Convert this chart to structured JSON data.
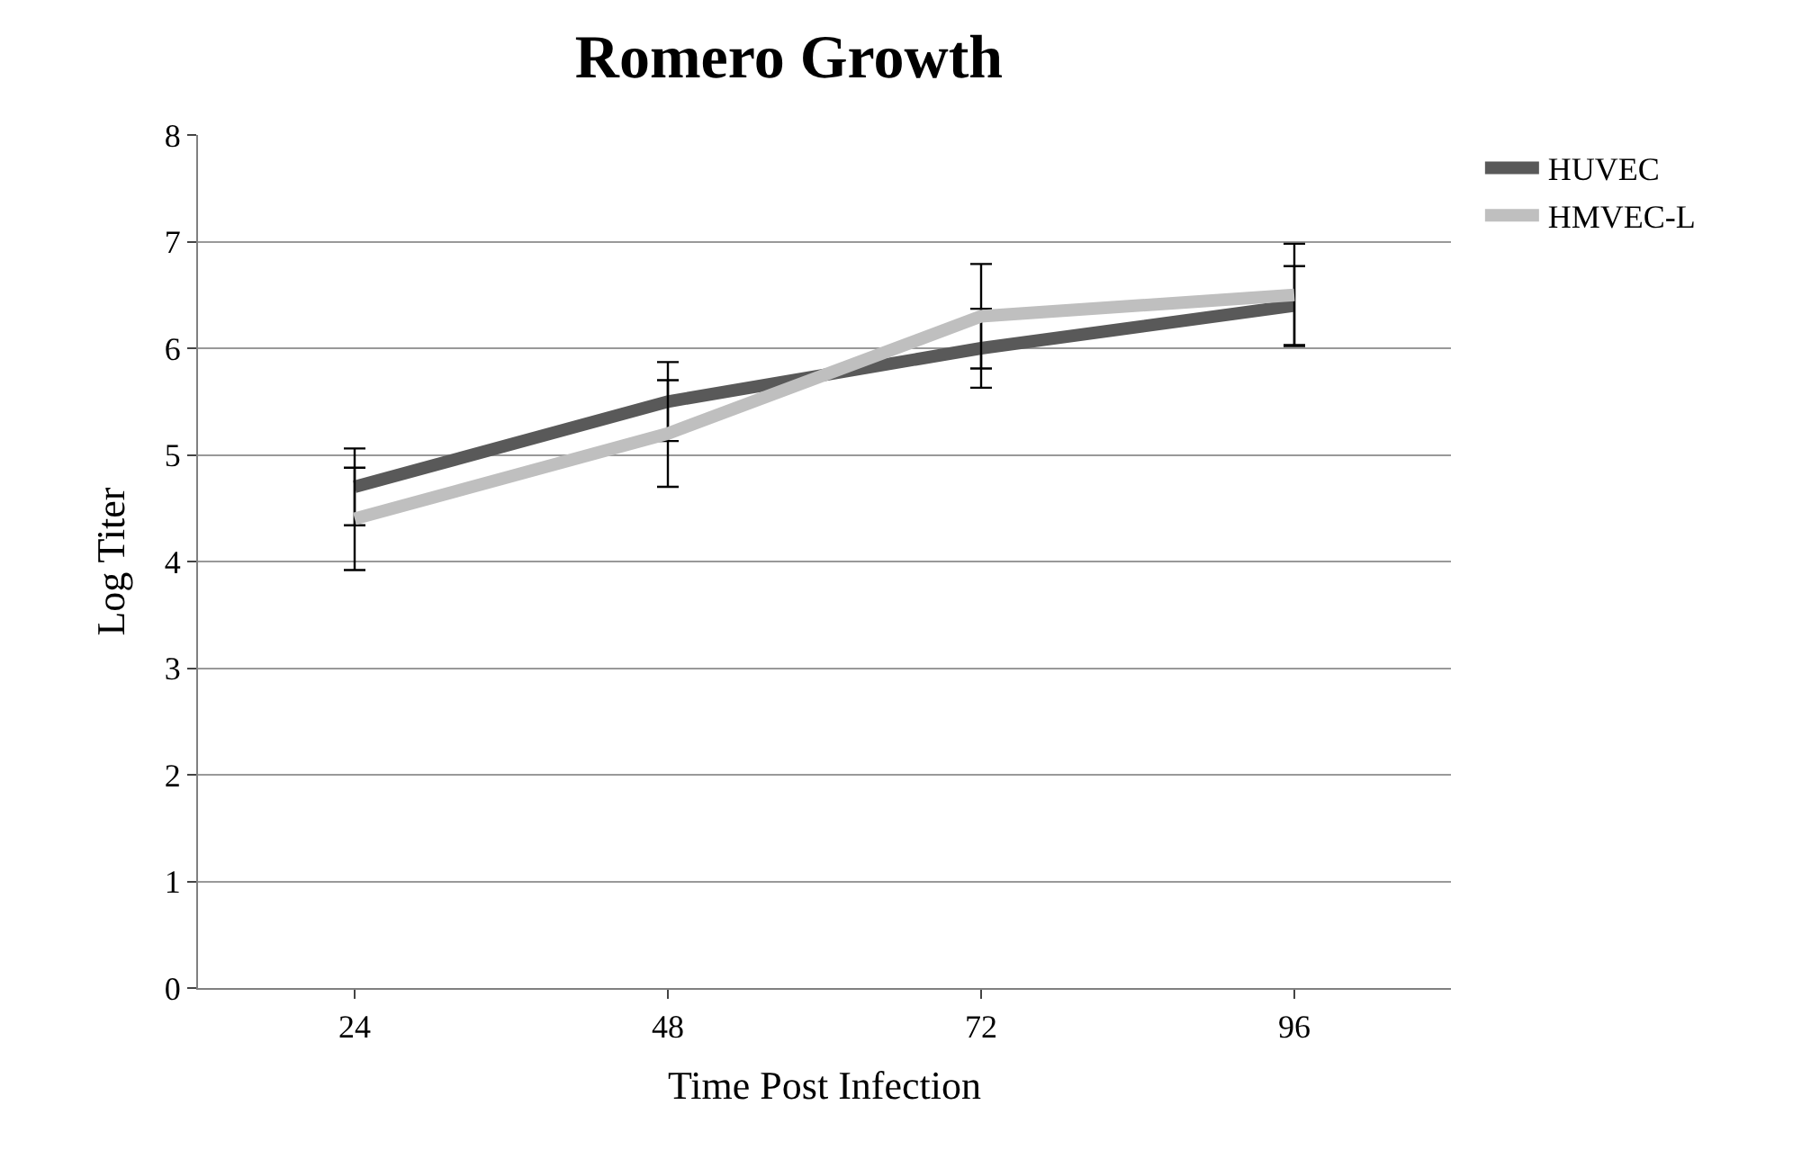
{
  "chart_data": {
    "type": "line",
    "title": "Romero Growth",
    "xlabel": "Time Post Infection",
    "ylabel": "Log Titer",
    "categories": [
      "24",
      "48",
      "72",
      "96"
    ],
    "series": [
      {
        "name": "HUVEC",
        "color": "#595959",
        "values": [
          4.7,
          5.5,
          6.0,
          6.4
        ],
        "errors": [
          0.36,
          0.37,
          0.37,
          0.37
        ]
      },
      {
        "name": "HMVEC-L",
        "color": "#bfbfbf",
        "values": [
          4.4,
          5.2,
          6.3,
          6.5
        ],
        "errors": [
          0.48,
          0.5,
          0.49,
          0.48
        ]
      }
    ],
    "ylim": [
      0,
      8
    ],
    "yticks": [
      0,
      1,
      2,
      3,
      4,
      5,
      6,
      7,
      8
    ],
    "grid": "y",
    "legend": "right",
    "marker": "none",
    "line_style": "solid"
  }
}
